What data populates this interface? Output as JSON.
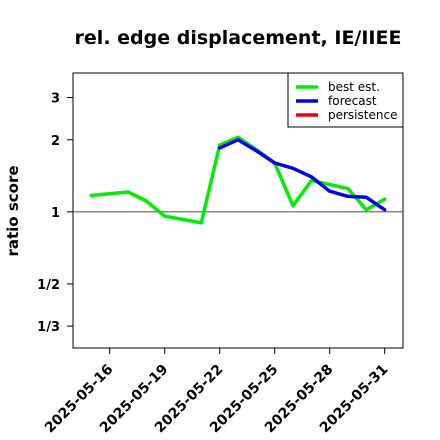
{
  "chart_data": {
    "type": "line",
    "title": "rel. edge displacement, IE/IIEE",
    "xlabel": "",
    "ylabel": "ratio score",
    "y_scale": "log",
    "ylim": [
      0.27,
      3.8
    ],
    "xlim": [
      "2025-05-14",
      "2025-06-01"
    ],
    "grid": false,
    "reference_line": 1,
    "y_ticks": [
      {
        "value": 0.3333,
        "label": "1/3"
      },
      {
        "value": 0.5,
        "label": "1/2"
      },
      {
        "value": 1,
        "label": "1"
      },
      {
        "value": 2,
        "label": "2"
      },
      {
        "value": 3,
        "label": "3"
      }
    ],
    "x_ticks": [
      {
        "date": "2025-05-16",
        "label": "2025-05-16",
        "color": "#000000"
      },
      {
        "date": "2025-05-19",
        "label": "2025-05-19",
        "color": "#000000"
      },
      {
        "date": "2025-05-22",
        "label": "2025-05-22",
        "color": "#228B22"
      },
      {
        "date": "2025-05-25",
        "label": "2025-05-25",
        "color": "#000000"
      },
      {
        "date": "2025-05-28",
        "label": "2025-05-28",
        "color": "#000000"
      },
      {
        "date": "2025-05-31",
        "label": "2025-05-31",
        "color": "#000000"
      }
    ],
    "legend": {
      "position": "top-right",
      "entries": [
        {
          "name": "best est.",
          "color": "#00ee00"
        },
        {
          "name": "forecast",
          "color": "#0000ee"
        },
        {
          "name": "persistence",
          "color": "#ee0000"
        }
      ]
    },
    "series": [
      {
        "name": "best est.",
        "color": "#00ee00",
        "points": [
          [
            "2025-05-15",
            1.17
          ],
          [
            "2025-05-17",
            1.21
          ],
          [
            "2025-05-18",
            1.11
          ],
          [
            "2025-05-19",
            0.96
          ],
          [
            "2025-05-21",
            0.9
          ],
          [
            "2025-05-22",
            1.9
          ],
          [
            "2025-05-23",
            2.05
          ],
          [
            "2025-05-24",
            1.82
          ],
          [
            "2025-05-25",
            1.6
          ],
          [
            "2025-05-26",
            1.06
          ],
          [
            "2025-05-27",
            1.35
          ],
          [
            "2025-05-28",
            1.3
          ],
          [
            "2025-05-29",
            1.25
          ],
          [
            "2025-05-30",
            1.02
          ],
          [
            "2025-05-31",
            1.13
          ]
        ]
      },
      {
        "name": "forecast",
        "color": "#0000ee",
        "points": [
          [
            "2025-05-22",
            1.85
          ],
          [
            "2025-05-23",
            2.0
          ],
          [
            "2025-05-24",
            1.8
          ],
          [
            "2025-05-25",
            1.6
          ],
          [
            "2025-05-26",
            1.52
          ],
          [
            "2025-05-27",
            1.4
          ],
          [
            "2025-05-28",
            1.22
          ],
          [
            "2025-05-29",
            1.16
          ],
          [
            "2025-05-30",
            1.15
          ],
          [
            "2025-05-31",
            1.02
          ]
        ]
      }
    ]
  }
}
